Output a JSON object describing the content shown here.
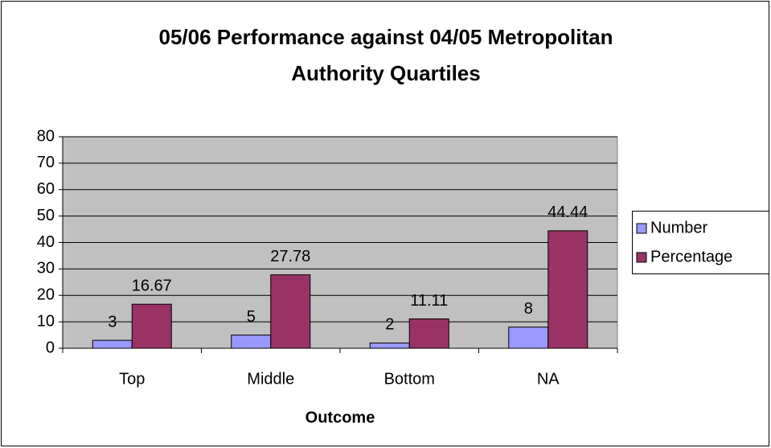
{
  "chart_data": {
    "type": "bar",
    "title": "05/06 Performance against 04/05 Metropolitan Authority Quartiles",
    "x_label": "Outcome",
    "categories": [
      "Top",
      "Middle",
      "Bottom",
      "NA"
    ],
    "series": [
      {
        "name": "Number",
        "color": "#9999ff",
        "values": [
          3,
          5,
          2,
          8
        ]
      },
      {
        "name": "Percentage",
        "color": "#993366",
        "values": [
          16.67,
          27.78,
          11.11,
          44.44
        ]
      }
    ],
    "ylim": [
      0,
      80
    ],
    "yticks": [
      0,
      10,
      20,
      30,
      40,
      50,
      60,
      70,
      80
    ],
    "grid": true,
    "legend": "right",
    "plot_background": "#c0c0c0"
  }
}
